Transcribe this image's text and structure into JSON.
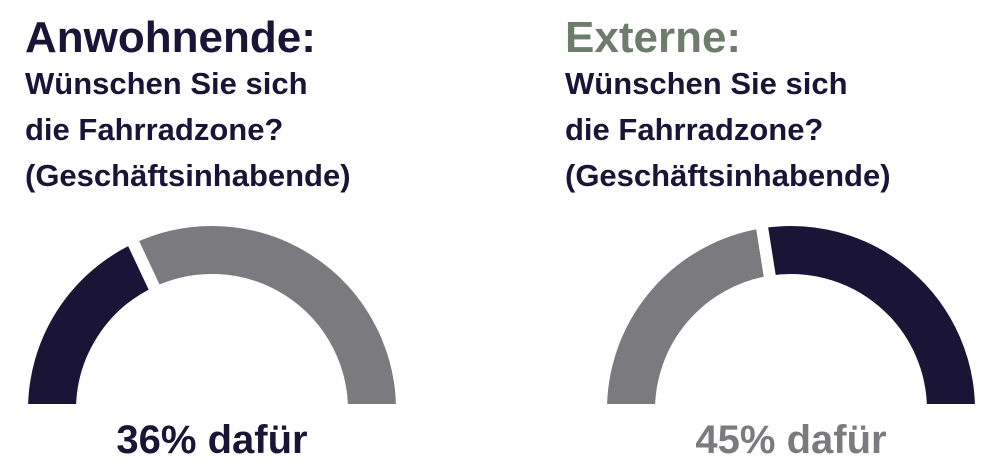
{
  "chart_data": [
    {
      "type": "gauge",
      "title": "Anwohnende:",
      "title_color": "#1a1437",
      "question_lines": [
        "Wünschen Sie sich",
        "die Fahrradzone?",
        "(Geschäftsinhabende)"
      ],
      "categories": [
        null,
        null
      ],
      "values": [
        36,
        64
      ],
      "value_labels": [
        "36% dafür",
        null
      ],
      "colors": [
        "#1a1437",
        "#7b7a7f"
      ]
    },
    {
      "type": "gauge",
      "title": "Externe:",
      "title_color": "#6e7d6b",
      "question_lines": [
        "Wünschen Sie sich",
        "die Fahrradzone?",
        "(Geschäftsinhabende)"
      ],
      "categories": [
        null,
        null
      ],
      "values": [
        45,
        55
      ],
      "value_labels": [
        "45% dafür",
        null
      ],
      "colors": [
        "#7b7a7f",
        "#1a1437"
      ]
    }
  ]
}
